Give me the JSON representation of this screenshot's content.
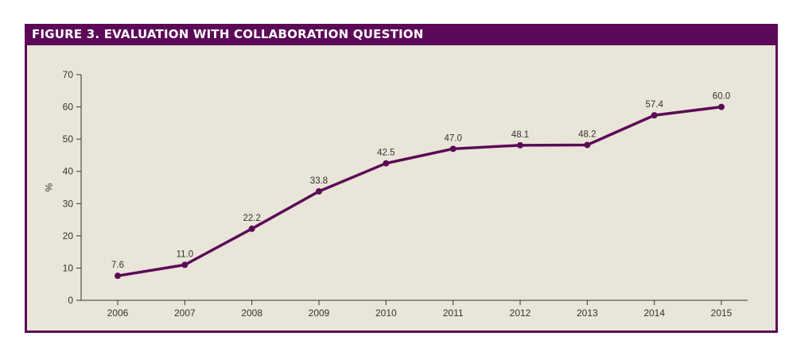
{
  "figure": {
    "title": "FIGURE 3. EVALUATION WITH COLLABORATION QUESTION"
  },
  "colors": {
    "frame": "#5c0a57",
    "line": "#5c0a57",
    "background": "#e9e5d8",
    "axis": "#333333"
  },
  "chart_data": {
    "type": "line",
    "title": "FIGURE 3. EVALUATION WITH COLLABORATION QUESTION",
    "xlabel": "",
    "ylabel": "%",
    "categories": [
      "2006",
      "2007",
      "2008",
      "2009",
      "2010",
      "2011",
      "2012",
      "2013",
      "2014",
      "2015"
    ],
    "series": [
      {
        "values": [
          7.6,
          11.0,
          22.2,
          33.8,
          42.5,
          47.0,
          48.1,
          48.2,
          57.4,
          60.0
        ],
        "labels": [
          "7.6",
          "11.0",
          "22.2",
          "33.8",
          "42.5",
          "47.0",
          "48.1",
          "48.2",
          "57.4",
          "60.0"
        ]
      }
    ],
    "ylim": [
      0,
      70
    ],
    "yticks": [
      "0",
      "10",
      "20",
      "30",
      "40",
      "50",
      "60",
      "70"
    ],
    "grid": false,
    "legend": "none"
  }
}
